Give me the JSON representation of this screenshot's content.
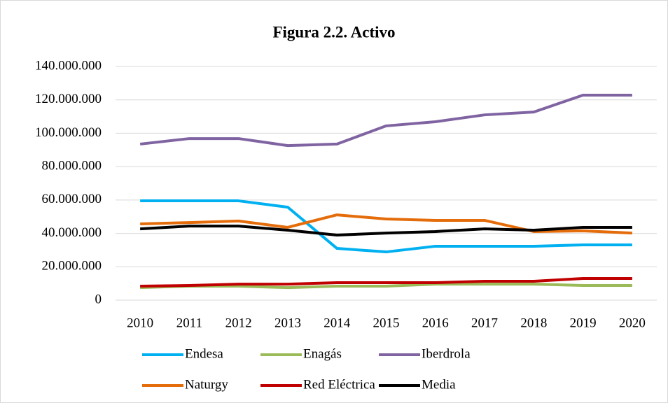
{
  "chart_data": {
    "type": "line",
    "title": "Figura 2.2. Activo",
    "categories": [
      "2010",
      "2011",
      "2012",
      "2013",
      "2014",
      "2015",
      "2016",
      "2017",
      "2018",
      "2019",
      "2020"
    ],
    "series": [
      {
        "name": "Endesa",
        "color": "#00b0f0",
        "values": [
          59500000,
          59500000,
          59500000,
          55700000,
          31000000,
          28900000,
          32300000,
          32300000,
          32300000,
          33100000,
          33100000
        ]
      },
      {
        "name": "Enagás",
        "color": "#9bbb59",
        "values": [
          7500000,
          8400000,
          8400000,
          7500000,
          8400000,
          8400000,
          9600000,
          9600000,
          9600000,
          8800000,
          8800000
        ]
      },
      {
        "name": "Iberdrola",
        "color": "#8064a2",
        "values": [
          93500000,
          96800000,
          96800000,
          92600000,
          93500000,
          104400000,
          106900000,
          111000000,
          112700000,
          122800000,
          122800000
        ]
      },
      {
        "name": "Naturgy",
        "color": "#e46c0a",
        "values": [
          45700000,
          46500000,
          47400000,
          43600000,
          51100000,
          48600000,
          47800000,
          47800000,
          41100000,
          41500000,
          40200000
        ]
      },
      {
        "name": "Red Eléctrica",
        "color": "#c00000",
        "values": [
          8400000,
          8800000,
          9600000,
          9600000,
          10500000,
          10500000,
          10500000,
          11300000,
          11300000,
          13000000,
          13000000
        ]
      },
      {
        "name": "Media",
        "color": "#000000",
        "values": [
          42700000,
          44400000,
          44400000,
          41900000,
          39000000,
          40200000,
          41100000,
          42700000,
          41900000,
          43600000,
          43600000
        ]
      }
    ],
    "ylim": [
      0,
      140000000
    ],
    "yticks": [
      0,
      {
        "value": 20000000,
        "label": "20.000.000"
      },
      {
        "value": 40000000,
        "label": "40.000.000"
      },
      {
        "value": 60000000,
        "label": "60.000.000"
      },
      {
        "value": 80000000,
        "label": "80.000.000"
      },
      {
        "value": 100000000,
        "label": "100.000.000"
      },
      {
        "value": 120000000,
        "label": "120.000.000"
      },
      {
        "value": 140000000,
        "label": "140.000.000"
      }
    ],
    "grid": true,
    "legend": "bottom"
  }
}
